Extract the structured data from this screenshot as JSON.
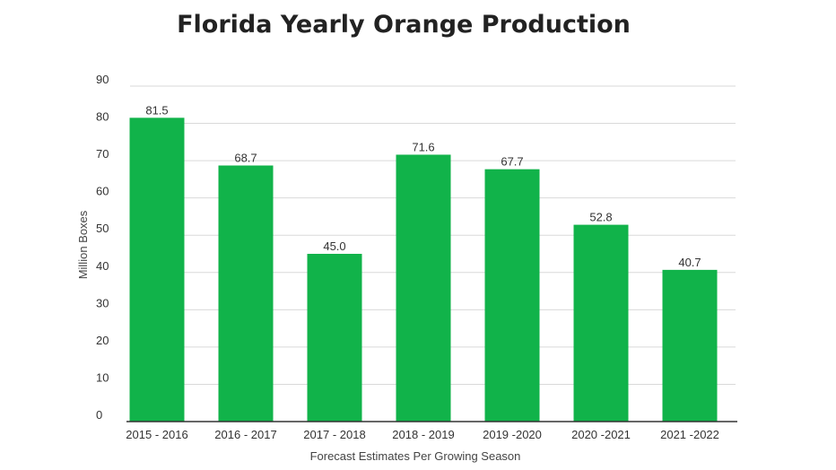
{
  "chart_data": {
    "type": "bar",
    "title": "Florida Yearly Orange Production",
    "xlabel": "Forecast Estimates Per Growing Season",
    "ylabel": "Million Boxes",
    "categories": [
      "2015 - 2016",
      "2016 - 2017",
      "2017 - 2018",
      "2018 - 2019",
      "2019 -2020",
      "2020 -2021",
      "2021 -2022"
    ],
    "values": [
      81.5,
      68.7,
      45.0,
      71.6,
      67.7,
      52.8,
      40.7
    ],
    "data_labels": [
      "81.5",
      "68.7",
      "45.0",
      "71.6",
      "67.7",
      "52.8",
      "40.7"
    ],
    "yticks": [
      0,
      10,
      20,
      30,
      40,
      50,
      60,
      70,
      80,
      90
    ],
    "ylim": [
      0,
      90
    ],
    "grid": true,
    "legend": "none",
    "bar_color": "#11b34a",
    "grid_color": "#d9d9d9",
    "axis_color": "#333333"
  }
}
